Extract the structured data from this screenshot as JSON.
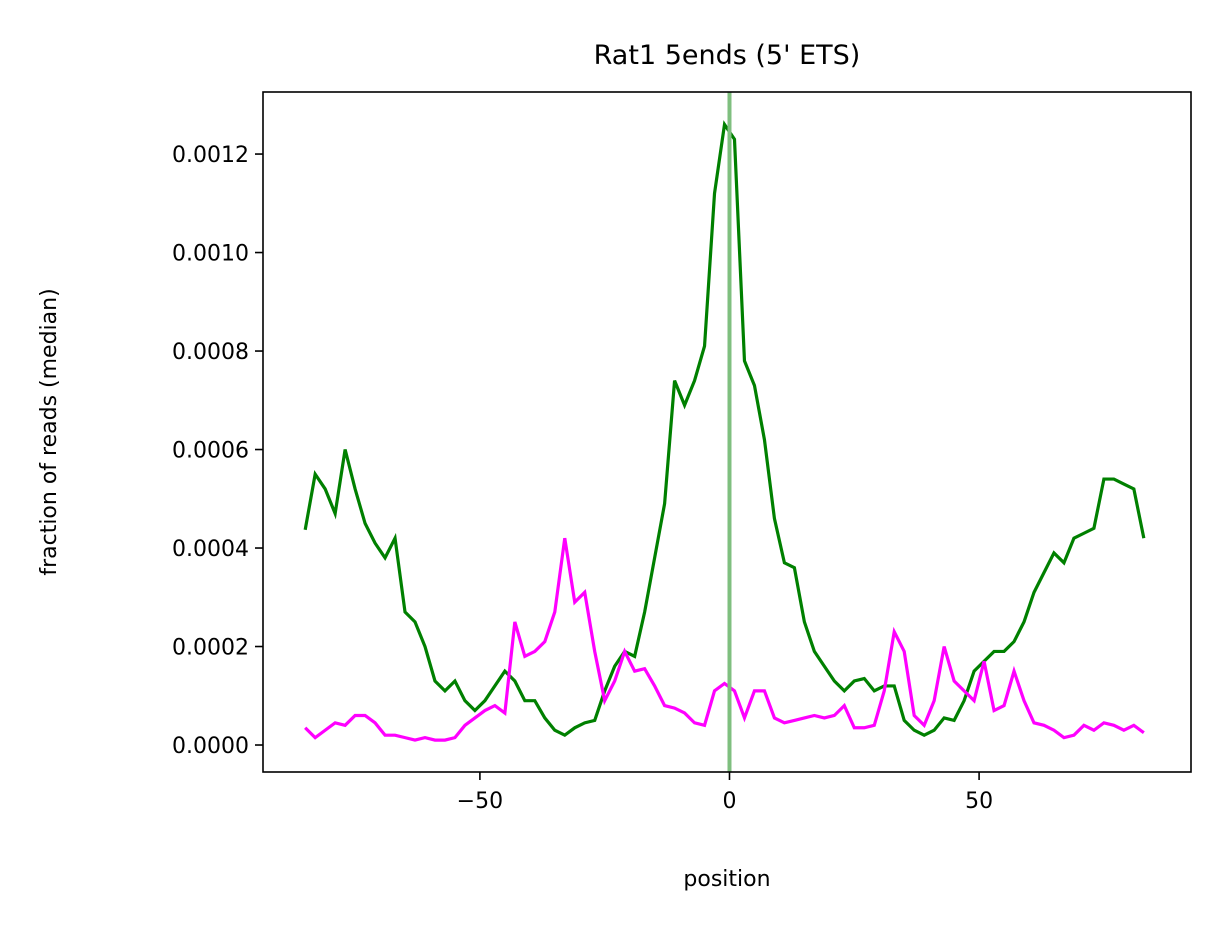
{
  "chart_data": {
    "type": "line",
    "title": "Rat1 5ends (5' ETS)",
    "xlabel": "position",
    "ylabel": "fraction of reads (median)",
    "x": [
      -85,
      -83,
      -81,
      -79,
      -77,
      -75,
      -73,
      -71,
      -69,
      -67,
      -65,
      -63,
      -61,
      -59,
      -57,
      -55,
      -53,
      -51,
      -49,
      -47,
      -45,
      -43,
      -41,
      -39,
      -37,
      -35,
      -33,
      -31,
      -29,
      -27,
      -25,
      -23,
      -21,
      -19,
      -17,
      -15,
      -13,
      -11,
      -9,
      -7,
      -5,
      -3,
      -1,
      1,
      3,
      5,
      7,
      9,
      11,
      13,
      15,
      17,
      19,
      21,
      23,
      25,
      27,
      29,
      31,
      33,
      35,
      37,
      39,
      41,
      43,
      45,
      47,
      49,
      51,
      53,
      55,
      57,
      59,
      61,
      63,
      65,
      67,
      69,
      71,
      73,
      75,
      77,
      79,
      81,
      83
    ],
    "series": [
      {
        "color": "#008000",
        "values": [
          0.000437,
          0.00055,
          0.00052,
          0.00047,
          0.0006,
          0.00052,
          0.00045,
          0.00041,
          0.00038,
          0.00042,
          0.00027,
          0.00025,
          0.0002,
          0.00013,
          0.00011,
          0.00013,
          9e-05,
          7e-05,
          9e-05,
          0.00012,
          0.00015,
          0.00013,
          9e-05,
          9e-05,
          5.5e-05,
          3e-05,
          2e-05,
          3.5e-05,
          4.5e-05,
          5e-05,
          0.00011,
          0.00016,
          0.00019,
          0.00018,
          0.00027,
          0.00038,
          0.00049,
          0.00074,
          0.00069,
          0.00074,
          0.00081,
          0.00112,
          0.00126,
          0.00123,
          0.00078,
          0.00073,
          0.00062,
          0.00046,
          0.00037,
          0.00036,
          0.00025,
          0.00019,
          0.00016,
          0.00013,
          0.00011,
          0.00013,
          0.000135,
          0.00011,
          0.00012,
          0.00012,
          5e-05,
          3e-05,
          2e-05,
          3e-05,
          5.5e-05,
          5e-05,
          9e-05,
          0.00015,
          0.00017,
          0.00019,
          0.00019,
          0.00021,
          0.00025,
          0.00031,
          0.00035,
          0.00039,
          0.00037,
          0.00042,
          0.00043,
          0.00044,
          0.00054,
          0.00054,
          0.00053,
          0.00052,
          0.00042
        ]
      },
      {
        "color": "#ff00ff",
        "values": [
          3.5e-05,
          1.5e-05,
          3e-05,
          4.5e-05,
          4e-05,
          6e-05,
          6e-05,
          4.5e-05,
          2e-05,
          2e-05,
          1.5e-05,
          1e-05,
          1.5e-05,
          1e-05,
          1e-05,
          1.5e-05,
          4e-05,
          5.5e-05,
          7e-05,
          8e-05,
          6.5e-05,
          0.00025,
          0.00018,
          0.00019,
          0.00021,
          0.00027,
          0.00042,
          0.00029,
          0.00031,
          0.00019,
          9e-05,
          0.00013,
          0.00019,
          0.00015,
          0.000155,
          0.00012,
          8e-05,
          7.5e-05,
          6.5e-05,
          4.5e-05,
          4e-05,
          0.00011,
          0.000125,
          0.00011,
          5.5e-05,
          0.00011,
          0.00011,
          5.5e-05,
          4.5e-05,
          5e-05,
          5.5e-05,
          6e-05,
          5.5e-05,
          6e-05,
          8e-05,
          3.5e-05,
          3.5e-05,
          4e-05,
          0.00011,
          0.00023,
          0.00019,
          6e-05,
          4e-05,
          9e-05,
          0.0002,
          0.00013,
          0.00011,
          9e-05,
          0.00017,
          7e-05,
          8e-05,
          0.00015,
          9e-05,
          4.5e-05,
          4e-05,
          3e-05,
          1.5e-05,
          2e-05,
          4e-05,
          3e-05,
          4.5e-05,
          4e-05,
          3e-05,
          4e-05,
          2.5e-05
        ]
      }
    ],
    "vline": {
      "x": 0,
      "color": "#7fbf7f"
    },
    "xlim": [
      -93.45,
      92.45
    ],
    "ylim": [
      -5.48e-05,
      0.001326
    ],
    "xticks": [
      {
        "value": -50,
        "label": "−50"
      },
      0,
      50
    ],
    "yticks": [
      {
        "value": 0,
        "label": "0.0000"
      },
      {
        "value": 0.0002,
        "label": "0.0002"
      },
      {
        "value": 0.0004,
        "label": "0.0004"
      },
      {
        "value": 0.0006,
        "label": "0.0006"
      },
      {
        "value": 0.0008,
        "label": "0.0008"
      },
      {
        "value": 0.001,
        "label": "0.0010"
      },
      {
        "value": 0.0012,
        "label": "0.0012"
      }
    ]
  }
}
